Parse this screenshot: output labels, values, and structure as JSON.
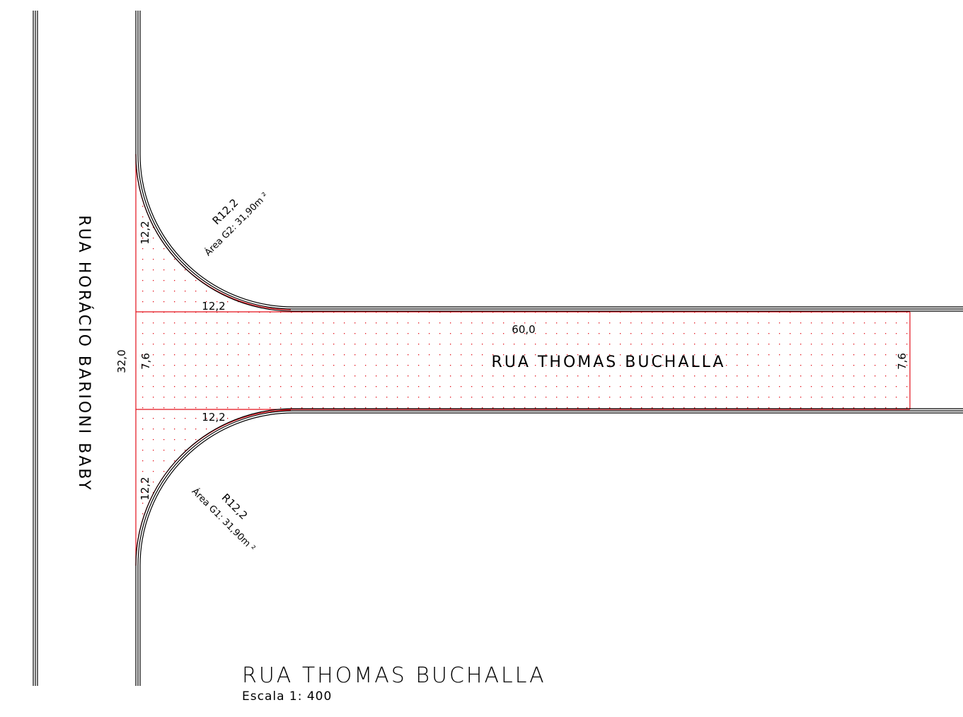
{
  "streets": {
    "vertical_name": "RUA HORÁCIO BARIONI BABY",
    "horizontal_name": "RUA THOMAS BUCHALLA"
  },
  "dimensions": {
    "length": "60,0",
    "width_left": "7,6",
    "width_right": "7,6",
    "total_height": "32,0",
    "top_leg_horizontal": "12,2",
    "top_leg_vertical": "12,2",
    "bottom_leg_horizontal": "12,2",
    "bottom_leg_vertical": "12,2"
  },
  "curves": {
    "top": {
      "radius": "R12,2",
      "area": "Área G2: 31,90m ²"
    },
    "bottom": {
      "radius": "R12,2",
      "area": "Área G1: 31,90m ²"
    }
  },
  "title": {
    "main": "RUA THOMAS BUCHALLA",
    "scale": "Escala 1: 400"
  },
  "colors": {
    "linework": "#000000",
    "area_outline": "#e3101a",
    "hatch_dots": "#e3101a"
  }
}
